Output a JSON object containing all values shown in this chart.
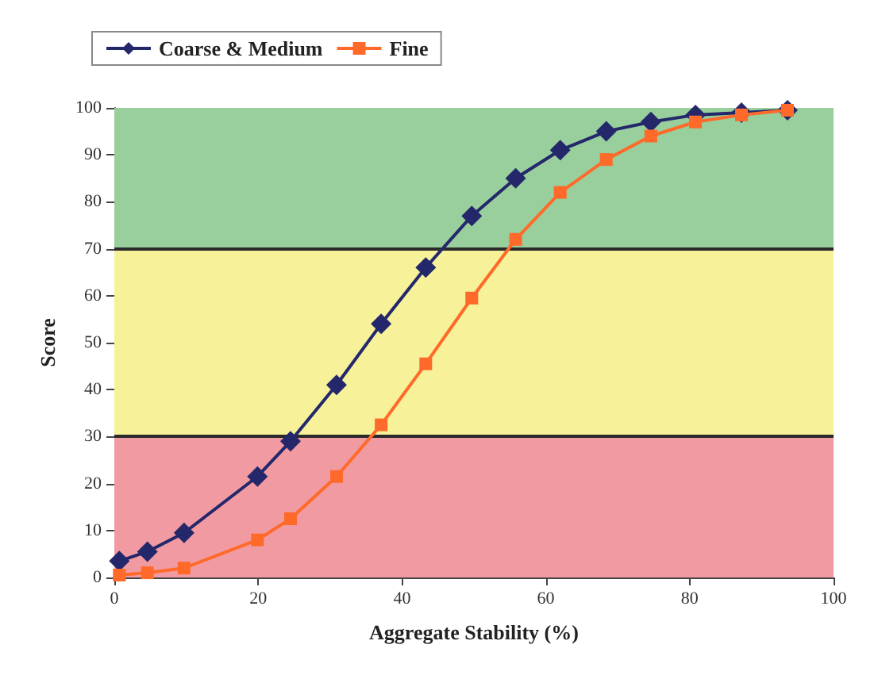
{
  "chart_data": {
    "type": "line",
    "xlabel": "Aggregate Stability (%)",
    "ylabel": "Score",
    "xlim": [
      0,
      100
    ],
    "xticks": [
      0,
      20,
      40,
      60,
      80,
      100
    ],
    "ylim": [
      0,
      100
    ],
    "yticks": [
      0,
      10,
      20,
      30,
      40,
      50,
      60,
      70,
      80,
      90,
      100
    ],
    "legend": "top left",
    "grid": false,
    "line_style": "solid",
    "bands": [
      {
        "axis": "y",
        "from": 0,
        "to": 30,
        "color": "#f29aa2"
      },
      {
        "axis": "y",
        "from": 30,
        "to": 70,
        "color": "#f7f19a"
      },
      {
        "axis": "y",
        "from": 70,
        "to": 100,
        "color": "#98cf9c"
      }
    ],
    "ref_lines": [
      {
        "axis": "y",
        "value": 30,
        "color": "#2a2a2a"
      },
      {
        "axis": "y",
        "value": 70,
        "color": "#2a2a2a"
      }
    ],
    "series": [
      {
        "name": "Coarse & Medium",
        "color": "#24286b",
        "marker": "diamond",
        "x": [
          0.7,
          4.6,
          9.7,
          19.9,
          24.5,
          30.9,
          37.1,
          43.3,
          49.7,
          55.8,
          62,
          68.4,
          74.6,
          80.8,
          87.2,
          93.6
        ],
        "values": [
          3.5,
          5.5,
          9.5,
          21.5,
          29,
          41,
          54,
          66,
          77,
          85,
          91,
          95,
          97,
          98.5,
          99,
          99.5
        ]
      },
      {
        "name": "Fine",
        "color": "#ff6a2a",
        "marker": "square",
        "x": [
          0.7,
          4.6,
          9.7,
          19.9,
          24.5,
          30.9,
          37.1,
          43.3,
          49.7,
          55.8,
          62,
          68.4,
          74.6,
          80.8,
          87.2,
          93.6
        ],
        "values": [
          0.5,
          1,
          2,
          8,
          12.5,
          21.5,
          32.5,
          45.5,
          59.5,
          72,
          82,
          89,
          94,
          97,
          98.5,
          99.5
        ]
      }
    ]
  }
}
